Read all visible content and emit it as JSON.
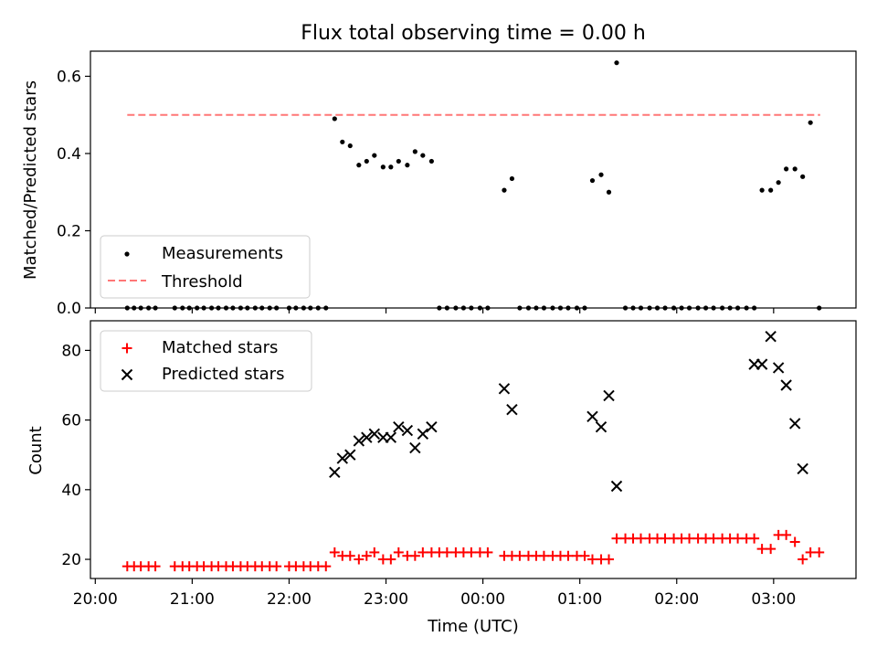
{
  "title": "Flux total observing time = 0.00 h",
  "xlabel": "Time (UTC)",
  "x_ticks": [
    20.0,
    21.0,
    22.0,
    23.0,
    24.0,
    25.0,
    26.0,
    27.0
  ],
  "x_tick_labels": [
    "20:00",
    "21:00",
    "22:00",
    "23:00",
    "00:00",
    "01:00",
    "02:00",
    "03:00"
  ],
  "colors": {
    "measurements": "#000000",
    "threshold": "#ff7777",
    "matched": "#ff0000",
    "predicted": "#000000"
  },
  "chart_data": [
    {
      "type": "scatter",
      "ylabel": "Matched/Predicted stars",
      "xlim": [
        19.95,
        27.85
      ],
      "ylim": [
        0.0,
        0.665
      ],
      "y_ticks": [
        0.0,
        0.2,
        0.4,
        0.6
      ],
      "y_tick_labels": [
        "0.0",
        "0.2",
        "0.4",
        "0.6"
      ],
      "legend_position": "lower-left",
      "threshold": {
        "name": "Threshold",
        "value": 0.5,
        "x_range": [
          20.33,
          27.48
        ]
      },
      "series": [
        {
          "name": "Measurements",
          "x": [
            20.33,
            20.4,
            20.47,
            20.55,
            20.62,
            20.82,
            20.9,
            20.97,
            21.05,
            21.12,
            21.2,
            21.27,
            21.35,
            21.42,
            21.5,
            21.57,
            21.65,
            21.72,
            21.8,
            21.87,
            22.0,
            22.07,
            22.15,
            22.22,
            22.3,
            22.38,
            22.47,
            22.55,
            22.63,
            22.72,
            22.8,
            22.88,
            22.97,
            23.05,
            23.13,
            23.22,
            23.3,
            23.38,
            23.47,
            23.55,
            23.63,
            23.72,
            23.8,
            23.88,
            23.97,
            24.05,
            24.22,
            24.3,
            24.38,
            24.47,
            24.55,
            24.63,
            24.72,
            24.8,
            24.88,
            24.97,
            25.05,
            25.13,
            25.22,
            25.3,
            25.38,
            25.47,
            25.55,
            25.63,
            25.72,
            25.8,
            25.88,
            25.97,
            26.05,
            26.13,
            26.22,
            26.3,
            26.38,
            26.47,
            26.55,
            26.63,
            26.72,
            26.8,
            26.88,
            26.97,
            27.05,
            27.13,
            27.22,
            27.3,
            27.38,
            27.47
          ],
          "y": [
            0,
            0,
            0,
            0,
            0,
            0,
            0,
            0,
            0,
            0,
            0,
            0,
            0,
            0,
            0,
            0,
            0,
            0,
            0,
            0,
            0,
            0,
            0,
            0,
            0,
            0,
            0.49,
            0.43,
            0.42,
            0.37,
            0.38,
            0.395,
            0.365,
            0.365,
            0.38,
            0.37,
            0.405,
            0.395,
            0.38,
            0,
            0,
            0,
            0,
            0,
            0,
            0,
            0.305,
            0.335,
            0,
            0,
            0,
            0,
            0,
            0,
            0,
            0,
            0,
            0.33,
            0.345,
            0.3,
            0.635,
            0,
            0,
            0,
            0,
            0,
            0,
            0,
            0,
            0,
            0,
            0,
            0,
            0,
            0,
            0,
            0,
            0,
            0.305,
            0.305,
            0.325,
            0.36,
            0.36,
            0.34,
            0.48,
            0
          ]
        }
      ]
    },
    {
      "type": "scatter",
      "ylabel": "Count",
      "xlim": [
        19.95,
        27.85
      ],
      "ylim": [
        14.5,
        88.5
      ],
      "y_ticks": [
        20,
        40,
        60,
        80
      ],
      "y_tick_labels": [
        "20",
        "40",
        "60",
        "80"
      ],
      "legend_position": "upper-left",
      "series": [
        {
          "name": "Matched stars",
          "marker": "plus",
          "x": [
            20.33,
            20.4,
            20.47,
            20.55,
            20.62,
            20.82,
            20.9,
            20.97,
            21.05,
            21.12,
            21.2,
            21.27,
            21.35,
            21.42,
            21.5,
            21.57,
            21.65,
            21.72,
            21.8,
            21.87,
            22.0,
            22.07,
            22.15,
            22.22,
            22.3,
            22.38,
            22.47,
            22.55,
            22.63,
            22.72,
            22.8,
            22.88,
            22.97,
            23.05,
            23.13,
            23.22,
            23.3,
            23.38,
            23.47,
            23.55,
            23.63,
            23.72,
            23.8,
            23.88,
            23.97,
            24.05,
            24.22,
            24.3,
            24.38,
            24.47,
            24.55,
            24.63,
            24.72,
            24.8,
            24.88,
            24.97,
            25.05,
            25.13,
            25.22,
            25.3,
            25.38,
            25.47,
            25.55,
            25.63,
            25.72,
            25.8,
            25.88,
            25.97,
            26.05,
            26.13,
            26.22,
            26.3,
            26.38,
            26.47,
            26.55,
            26.63,
            26.72,
            26.8,
            26.88,
            26.97,
            27.05,
            27.13,
            27.22,
            27.3,
            27.38,
            27.47
          ],
          "y": [
            18,
            18,
            18,
            18,
            18,
            18,
            18,
            18,
            18,
            18,
            18,
            18,
            18,
            18,
            18,
            18,
            18,
            18,
            18,
            18,
            18,
            18,
            18,
            18,
            18,
            18,
            22,
            21,
            21,
            20,
            21,
            22,
            20,
            20,
            22,
            21,
            21,
            22,
            22,
            22,
            22,
            22,
            22,
            22,
            22,
            22,
            21,
            21,
            21,
            21,
            21,
            21,
            21,
            21,
            21,
            21,
            21,
            20,
            20,
            20,
            26,
            26,
            26,
            26,
            26,
            26,
            26,
            26,
            26,
            26,
            26,
            26,
            26,
            26,
            26,
            26,
            26,
            26,
            23,
            23,
            27,
            27,
            25,
            20,
            22,
            22
          ]
        },
        {
          "name": "Predicted stars",
          "marker": "x",
          "x": [
            22.47,
            22.55,
            22.63,
            22.72,
            22.8,
            22.88,
            22.97,
            23.05,
            23.13,
            23.22,
            23.3,
            23.38,
            23.47,
            24.22,
            24.3,
            25.13,
            25.22,
            25.3,
            25.38,
            26.8,
            26.88,
            26.97,
            27.05,
            27.13,
            27.22,
            27.3
          ],
          "y": [
            45,
            49,
            50,
            54,
            55,
            56,
            55,
            55,
            58,
            57,
            52,
            56,
            58,
            69,
            63,
            61,
            58,
            67,
            41,
            76,
            76,
            84,
            75,
            70,
            59,
            46
          ]
        }
      ]
    }
  ]
}
